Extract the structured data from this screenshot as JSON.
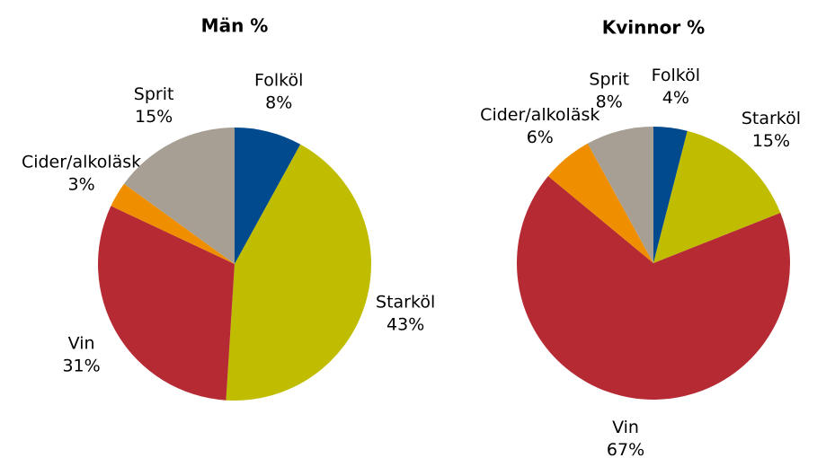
{
  "chart_data": [
    {
      "type": "pie",
      "title": "Män %",
      "categories": [
        "Folköl",
        "Starköl",
        "Vin",
        "Cider/alkoläsk",
        "Sprit"
      ],
      "values": [
        8,
        43,
        31,
        3,
        15
      ],
      "value_labels": [
        "8%",
        "43%",
        "31%",
        "3%",
        "15%"
      ],
      "colors": [
        "#004a8d",
        "#c0bd00",
        "#b52a33",
        "#ef8f00",
        "#a89f94"
      ]
    },
    {
      "type": "pie",
      "title": "Kvinnor %",
      "categories": [
        "Folköl",
        "Starköl",
        "Vin",
        "Cider/alkoläsk",
        "Sprit"
      ],
      "values": [
        4,
        15,
        67,
        6,
        8
      ],
      "value_labels": [
        "4%",
        "15%",
        "67%",
        "6%",
        "8%"
      ],
      "colors": [
        "#004a8d",
        "#c0bd00",
        "#b52a33",
        "#ef8f00",
        "#a89f94"
      ]
    }
  ]
}
